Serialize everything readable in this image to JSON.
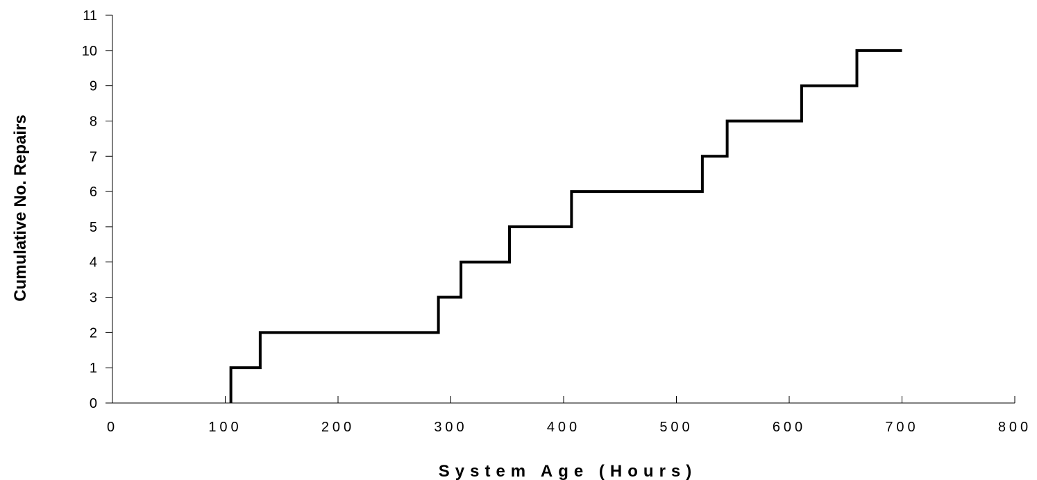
{
  "chart_data": {
    "type": "line",
    "style": "step",
    "xlabel": "System Age (Hours)",
    "ylabel": "Cumulative No. Repairs",
    "xlim": [
      0,
      800
    ],
    "ylim": [
      0,
      11
    ],
    "x_ticks": [
      0,
      100,
      200,
      300,
      400,
      500,
      600,
      700,
      800
    ],
    "x_tick_labels": [
      "0",
      "100",
      "200",
      "300",
      "400",
      "500",
      "600",
      "700",
      "800"
    ],
    "y_ticks": [
      0,
      1,
      2,
      3,
      4,
      5,
      6,
      7,
      8,
      9,
      10,
      11
    ],
    "y_tick_labels": [
      "0",
      "1",
      "2",
      "3",
      "4",
      "5",
      "6",
      "7",
      "8",
      "9",
      "10",
      "11"
    ],
    "grid": false,
    "legend": "none",
    "series": [
      {
        "repair_times": [
          105,
          131,
          289,
          309,
          352,
          407,
          523,
          545,
          611,
          660
        ],
        "end_time": 700,
        "color": "#000000"
      }
    ]
  }
}
